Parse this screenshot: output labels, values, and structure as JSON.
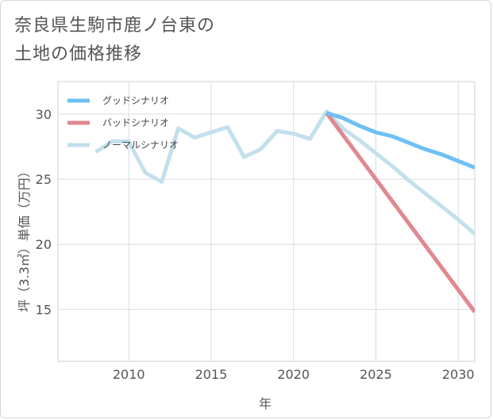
{
  "title_lines": [
    "奈良県生駒市鹿ノ台東の",
    "土地の価格推移"
  ],
  "colors": {
    "good": "#6ec0f2",
    "bad": "#e08890",
    "normal": "#c3e0ec",
    "grid": "#d4dde3",
    "text": "#555555"
  },
  "chart_data": {
    "type": "line",
    "title": "奈良県生駒市鹿ノ台東の土地の価格推移",
    "xlabel": "年",
    "ylabel": "坪（3.3㎡）単価（万円）",
    "xlim": [
      2005.7,
      2031
    ],
    "ylim": [
      11,
      32.5
    ],
    "x_ticks": [
      2010,
      2015,
      2020,
      2025,
      2030
    ],
    "y_ticks": [
      15,
      20,
      25,
      30
    ],
    "legend_position": "top-left",
    "series": [
      {
        "name": "グッドシナリオ",
        "color": "#6ec0f2",
        "x": [
          2022,
          2023,
          2024,
          2025,
          2026,
          2027,
          2028,
          2029,
          2030,
          2031
        ],
        "y": [
          30.1,
          29.7,
          29.1,
          28.6,
          28.3,
          27.8,
          27.3,
          26.9,
          26.4,
          25.9
        ]
      },
      {
        "name": "バッドシナリオ",
        "color": "#e08890",
        "x": [
          2022,
          2031
        ],
        "y": [
          30.1,
          14.8
        ]
      },
      {
        "name": "ノーマルシナリオ",
        "color": "#c3e0ec",
        "x": [
          2008,
          2009,
          2010,
          2011,
          2012,
          2013,
          2014,
          2015,
          2016,
          2017,
          2018,
          2019,
          2020,
          2021,
          2022,
          2023,
          2024,
          2025,
          2026,
          2027,
          2028,
          2029,
          2030,
          2031
        ],
        "y": [
          27.1,
          27.9,
          27.9,
          25.5,
          24.8,
          28.9,
          28.2,
          28.6,
          29.0,
          26.7,
          27.3,
          28.7,
          28.5,
          28.1,
          30.2,
          28.9,
          28.0,
          27.0,
          26.0,
          24.9,
          23.9,
          22.9,
          21.9,
          20.8
        ]
      }
    ]
  }
}
